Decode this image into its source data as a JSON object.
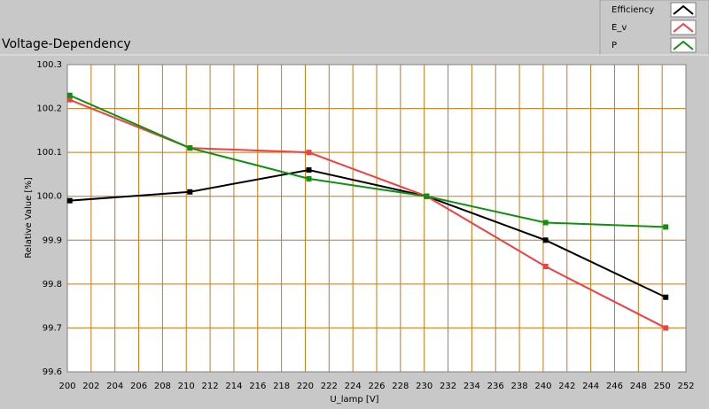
{
  "chart_data": {
    "type": "line",
    "title": "Voltage-Dependency",
    "x_label": "U_lamp [V]",
    "y_label": "Relative Value [%]",
    "x": [
      200.2,
      210.3,
      220.3,
      230.2,
      240.2,
      250.3
    ],
    "series": [
      {
        "name": "Efficiency",
        "color": "#000000",
        "values": [
          99.99,
          100.01,
          100.06,
          100.0,
          99.9,
          99.77
        ]
      },
      {
        "name": "E_v",
        "color": "#f04040",
        "values": [
          100.22,
          100.11,
          100.1,
          100.0,
          99.84,
          99.7
        ]
      },
      {
        "name": "P",
        "color": "#109010",
        "values": [
          100.23,
          100.11,
          100.04,
          100.0,
          99.94,
          99.93
        ]
      }
    ],
    "xlim": [
      200,
      252
    ],
    "xticks": [
      200,
      202,
      204,
      206,
      208,
      210,
      212,
      214,
      216,
      218,
      220,
      222,
      224,
      226,
      228,
      230,
      232,
      234,
      236,
      238,
      240,
      242,
      244,
      246,
      248,
      250,
      252
    ],
    "ylim": [
      99.6,
      100.3
    ],
    "yticks": [
      99.6,
      99.7,
      99.8,
      99.9,
      {
        "value": 100,
        "label": "100.0"
      },
      100.1,
      100.2,
      100.3
    ],
    "grid": true,
    "grid_color": "#c87814"
  }
}
